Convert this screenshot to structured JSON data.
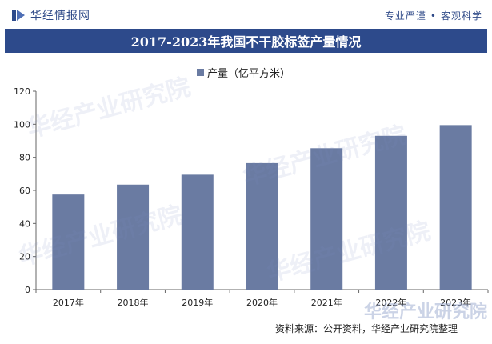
{
  "header": {
    "brand_name": "华经情报网",
    "slogan_left": "专业严谨",
    "slogan_sep": "•",
    "slogan_right": "客观科学"
  },
  "chart_data": {
    "type": "bar",
    "title": "2017-2023年我国不干胶标签产量情况",
    "categories": [
      "2017年",
      "2018年",
      "2019年",
      "2020年",
      "2021年",
      "2022年",
      "2023年"
    ],
    "series": [
      {
        "name": "产量（亿平方米）",
        "values": [
          57.5,
          63.5,
          69.5,
          76.5,
          85.5,
          93.0,
          99.5
        ],
        "color": "#6a7ba2"
      }
    ],
    "ylim": [
      0,
      120
    ],
    "yticks": [
      0,
      20,
      40,
      60,
      80,
      100,
      120
    ],
    "xlabel": "",
    "ylabel": "",
    "legend_position": "top-center",
    "grid": false
  },
  "footer": {
    "source": "资料来源：公开资料，华经产业研究院整理"
  },
  "watermark_text": "华经产业研究院",
  "colors": {
    "brand": "#2d4a8b",
    "bar": "#6a7ba2"
  }
}
